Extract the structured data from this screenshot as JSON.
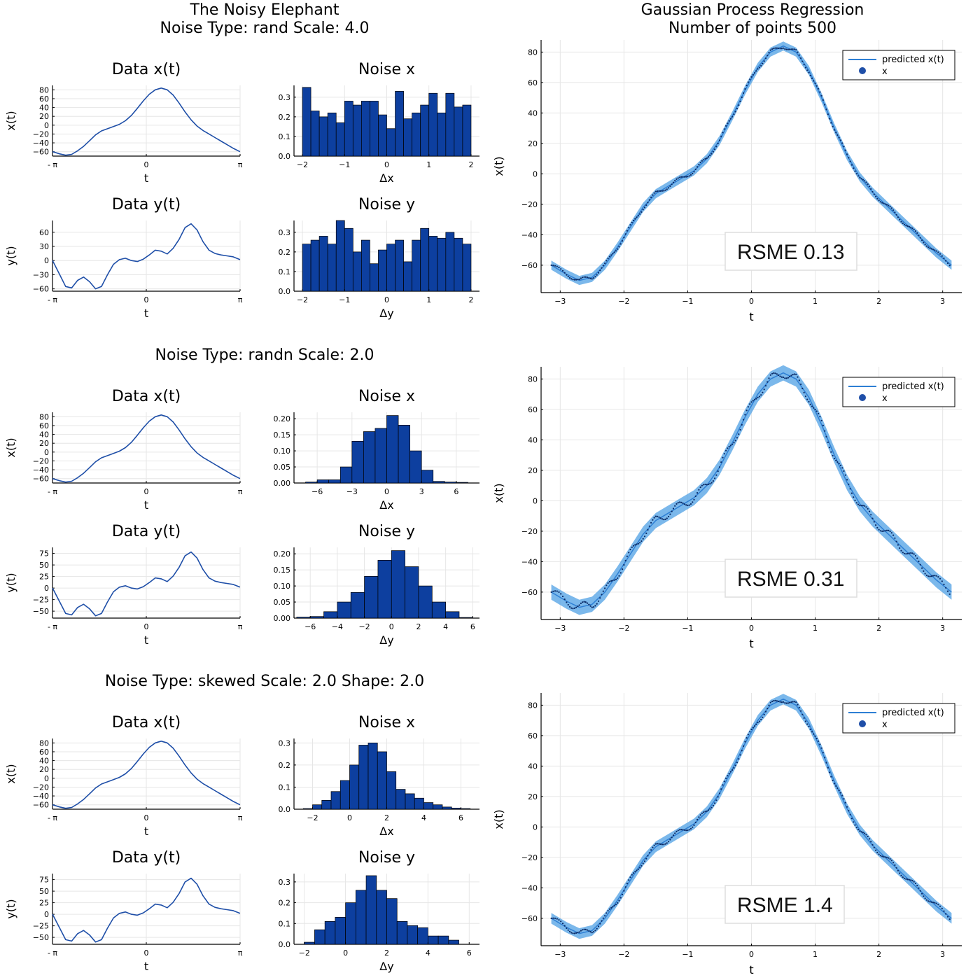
{
  "figure": {
    "section_titles": [
      "The Noisy Elephant\nNoise Type: rand Scale: 4.0",
      "Noise Type: randn Scale: 2.0",
      "Noise Type: skewed Scale: 2.0 Shape: 2.0"
    ],
    "gp_title": "Gaussian Process Regression\nNumber of points 500"
  },
  "colors": {
    "series": "#1f4fa8",
    "band": "#5aa6e6",
    "line": "#2e7fd4",
    "hist": "#0d3f9f"
  },
  "chart_data": [
    {
      "type": "line",
      "title": "Data x(t)",
      "xlabel": "t",
      "ylabel": "x(t)",
      "xlim": [
        -3.1416,
        3.1416
      ],
      "ylim": [
        -70,
        90
      ],
      "xticks": [
        -3.1416,
        0,
        3.1416
      ],
      "xticklabels": [
        "- π",
        "0",
        "π"
      ],
      "yticks": [
        -60,
        -40,
        -20,
        0,
        20,
        40,
        60,
        80
      ],
      "x": [
        -3.14,
        -2.9,
        -2.7,
        -2.5,
        -2.3,
        -2.1,
        -1.9,
        -1.7,
        -1.5,
        -1.3,
        -1.1,
        -0.9,
        -0.7,
        -0.5,
        -0.3,
        -0.1,
        0.1,
        0.3,
        0.5,
        0.7,
        0.9,
        1.1,
        1.3,
        1.5,
        1.7,
        1.9,
        2.1,
        2.3,
        2.5,
        2.7,
        2.9,
        3.14
      ],
      "y": [
        -60,
        -65,
        -68,
        -66,
        -58,
        -48,
        -35,
        -22,
        -13,
        -8,
        -3,
        2,
        10,
        22,
        38,
        55,
        70,
        80,
        84,
        80,
        68,
        50,
        30,
        12,
        -2,
        -12,
        -20,
        -28,
        -36,
        -44,
        -52,
        -60
      ]
    },
    {
      "type": "bar",
      "title": "Noise x",
      "xlabel": "Δx",
      "xlim": [
        -2.2,
        2.2
      ],
      "ylim": [
        0,
        0.36
      ],
      "xticks": [
        -2,
        -1,
        0,
        1,
        2
      ],
      "yticks": [
        0,
        0.1,
        0.2,
        0.3
      ],
      "bin_start": -2,
      "bin_width": 0.2,
      "values": [
        0.35,
        0.23,
        0.2,
        0.22,
        0.17,
        0.28,
        0.26,
        0.28,
        0.28,
        0.21,
        0.14,
        0.33,
        0.19,
        0.22,
        0.26,
        0.32,
        0.22,
        0.32,
        0.25,
        0.26
      ]
    },
    {
      "type": "line",
      "title": "Data y(t)",
      "xlabel": "t",
      "ylabel": "y(t)",
      "xlim": [
        -3.1416,
        3.1416
      ],
      "ylim": [
        -65,
        85
      ],
      "xticks": [
        -3.1416,
        0,
        3.1416
      ],
      "xticklabels": [
        "- π",
        "0",
        "π"
      ],
      "yticks": [
        -60,
        -30,
        0,
        30,
        60
      ],
      "x": [
        -3.14,
        -2.9,
        -2.7,
        -2.5,
        -2.3,
        -2.1,
        -1.9,
        -1.7,
        -1.5,
        -1.3,
        -1.1,
        -0.9,
        -0.7,
        -0.5,
        -0.3,
        -0.1,
        0.1,
        0.3,
        0.5,
        0.7,
        0.9,
        1.1,
        1.3,
        1.5,
        1.7,
        1.9,
        2.1,
        2.3,
        2.5,
        2.7,
        2.9,
        3.14
      ],
      "y": [
        0,
        -30,
        -55,
        -58,
        -42,
        -35,
        -45,
        -60,
        -55,
        -30,
        -8,
        2,
        5,
        0,
        -2,
        3,
        12,
        22,
        20,
        14,
        26,
        45,
        70,
        78,
        65,
        40,
        22,
        15,
        12,
        10,
        8,
        2
      ]
    },
    {
      "type": "bar",
      "title": "Noise y",
      "xlabel": "Δy",
      "xlim": [
        -2.2,
        2.2
      ],
      "ylim": [
        0,
        0.36
      ],
      "xticks": [
        -2,
        -1,
        0,
        1,
        2
      ],
      "yticks": [
        0,
        0.1,
        0.2,
        0.3
      ],
      "bin_start": -2,
      "bin_width": 0.2,
      "values": [
        0.24,
        0.26,
        0.28,
        0.24,
        0.36,
        0.32,
        0.2,
        0.26,
        0.14,
        0.21,
        0.24,
        0.26,
        0.15,
        0.26,
        0.32,
        0.28,
        0.27,
        0.3,
        0.27,
        0.24
      ]
    },
    {
      "type": "scatter",
      "title": "",
      "xlabel": "t",
      "ylabel": "x(t)",
      "xlim": [
        -3.3,
        3.3
      ],
      "ylim": [
        -78,
        88
      ],
      "xticks": [
        -3,
        -2,
        -1,
        0,
        1,
        2,
        3
      ],
      "yticks": [
        -60,
        -40,
        -20,
        0,
        20,
        40,
        60,
        80
      ],
      "legend": [
        "predicted x(t)",
        "x"
      ],
      "legend_position": "top-right",
      "annotation": "RSME 0.13",
      "band": 3,
      "noise": 1.5,
      "x": [
        -3.14,
        -2.9,
        -2.7,
        -2.5,
        -2.3,
        -2.1,
        -1.9,
        -1.7,
        -1.5,
        -1.3,
        -1.1,
        -0.9,
        -0.7,
        -0.5,
        -0.3,
        -0.1,
        0.1,
        0.3,
        0.5,
        0.7,
        0.9,
        1.1,
        1.3,
        1.5,
        1.7,
        1.9,
        2.1,
        2.3,
        2.5,
        2.7,
        2.9,
        3.14
      ],
      "y": [
        -60,
        -66,
        -70,
        -68,
        -60,
        -48,
        -35,
        -22,
        -13,
        -8,
        -3,
        2,
        10,
        22,
        38,
        55,
        70,
        80,
        84,
        80,
        68,
        50,
        30,
        12,
        -2,
        -12,
        -20,
        -28,
        -36,
        -44,
        -52,
        -60
      ]
    },
    {
      "type": "line",
      "title": "Data x(t)",
      "xlabel": "t",
      "ylabel": "x(t)",
      "xlim": [
        -3.1416,
        3.1416
      ],
      "ylim": [
        -70,
        90
      ],
      "xticks": [
        -3.1416,
        0,
        3.1416
      ],
      "xticklabels": [
        "- π",
        "0",
        "π"
      ],
      "yticks": [
        -60,
        -40,
        -20,
        0,
        20,
        40,
        60,
        80
      ],
      "x": [
        -3.14,
        -2.9,
        -2.7,
        -2.5,
        -2.3,
        -2.1,
        -1.9,
        -1.7,
        -1.5,
        -1.3,
        -1.1,
        -0.9,
        -0.7,
        -0.5,
        -0.3,
        -0.1,
        0.1,
        0.3,
        0.5,
        0.7,
        0.9,
        1.1,
        1.3,
        1.5,
        1.7,
        1.9,
        2.1,
        2.3,
        2.5,
        2.7,
        2.9,
        3.14
      ],
      "y": [
        -60,
        -65,
        -68,
        -66,
        -58,
        -48,
        -35,
        -22,
        -13,
        -8,
        -3,
        2,
        10,
        22,
        38,
        55,
        70,
        80,
        84,
        80,
        68,
        50,
        30,
        12,
        -2,
        -12,
        -20,
        -28,
        -36,
        -44,
        -52,
        -60
      ]
    },
    {
      "type": "bar",
      "title": "Noise x",
      "xlabel": "Δx",
      "xlim": [
        -8,
        8
      ],
      "ylim": [
        0,
        0.22
      ],
      "xticks": [
        -6,
        -3,
        0,
        3,
        6
      ],
      "yticks": [
        0,
        0.05,
        0.1,
        0.15,
        0.2
      ],
      "bin_start": -7,
      "bin_width": 1,
      "values": [
        0.003,
        0.01,
        0.01,
        0.05,
        0.13,
        0.16,
        0.17,
        0.21,
        0.18,
        0.1,
        0.04,
        0.005,
        0.003,
        0.002
      ]
    },
    {
      "type": "line",
      "title": "Data y(t)",
      "xlabel": "t",
      "ylabel": "y(t)",
      "xlim": [
        -3.1416,
        3.1416
      ],
      "ylim": [
        -65,
        88
      ],
      "xticks": [
        -3.1416,
        0,
        3.1416
      ],
      "xticklabels": [
        "- π",
        "0",
        "π"
      ],
      "yticks": [
        -50,
        -25,
        0,
        25,
        50,
        75
      ],
      "x": [
        -3.14,
        -2.9,
        -2.7,
        -2.5,
        -2.3,
        -2.1,
        -1.9,
        -1.7,
        -1.5,
        -1.3,
        -1.1,
        -0.9,
        -0.7,
        -0.5,
        -0.3,
        -0.1,
        0.1,
        0.3,
        0.5,
        0.7,
        0.9,
        1.1,
        1.3,
        1.5,
        1.7,
        1.9,
        2.1,
        2.3,
        2.5,
        2.7,
        2.9,
        3.14
      ],
      "y": [
        0,
        -30,
        -55,
        -58,
        -42,
        -35,
        -45,
        -60,
        -55,
        -30,
        -8,
        2,
        5,
        0,
        -2,
        3,
        12,
        22,
        20,
        14,
        26,
        45,
        70,
        78,
        65,
        40,
        22,
        15,
        12,
        10,
        8,
        2
      ]
    },
    {
      "type": "bar",
      "title": "Noise y",
      "xlabel": "Δy",
      "xlim": [
        -7.2,
        6.5
      ],
      "ylim": [
        0,
        0.22
      ],
      "xticks": [
        -6,
        -4,
        -2,
        0,
        2,
        4,
        6
      ],
      "yticks": [
        0,
        0.05,
        0.1,
        0.15,
        0.2
      ],
      "bin_start": -7,
      "bin_width": 1,
      "values": [
        0.003,
        0.005,
        0.02,
        0.05,
        0.08,
        0.13,
        0.18,
        0.21,
        0.16,
        0.1,
        0.05,
        0.02,
        0.002
      ]
    },
    {
      "type": "scatter",
      "title": "",
      "xlabel": "t",
      "ylabel": "x(t)",
      "xlim": [
        -3.3,
        3.3
      ],
      "ylim": [
        -78,
        88
      ],
      "xticks": [
        -3,
        -2,
        -1,
        0,
        1,
        2,
        3
      ],
      "yticks": [
        -60,
        -40,
        -20,
        0,
        20,
        40,
        60,
        80
      ],
      "legend": [
        "predicted x(t)",
        "x"
      ],
      "legend_position": "top-right",
      "annotation": "RSME 0.31",
      "band": 5,
      "noise": 3,
      "x": [
        -3.14,
        -2.9,
        -2.7,
        -2.5,
        -2.3,
        -2.1,
        -1.9,
        -1.7,
        -1.5,
        -1.3,
        -1.1,
        -0.9,
        -0.7,
        -0.5,
        -0.3,
        -0.1,
        0.1,
        0.3,
        0.5,
        0.7,
        0.9,
        1.1,
        1.3,
        1.5,
        1.7,
        1.9,
        2.1,
        2.3,
        2.5,
        2.7,
        2.9,
        3.14
      ],
      "y": [
        -60,
        -66,
        -70,
        -68,
        -60,
        -48,
        -35,
        -22,
        -13,
        -8,
        -3,
        2,
        10,
        22,
        38,
        55,
        70,
        80,
        84,
        80,
        68,
        50,
        30,
        12,
        -2,
        -12,
        -20,
        -28,
        -36,
        -44,
        -52,
        -60
      ]
    },
    {
      "type": "line",
      "title": "Data x(t)",
      "xlabel": "t",
      "ylabel": "x(t)",
      "xlim": [
        -3.1416,
        3.1416
      ],
      "ylim": [
        -70,
        90
      ],
      "xticks": [
        -3.1416,
        0,
        3.1416
      ],
      "xticklabels": [
        "- π",
        "0",
        "π"
      ],
      "yticks": [
        -60,
        -40,
        -20,
        0,
        20,
        40,
        60,
        80
      ],
      "x": [
        -3.14,
        -2.9,
        -2.7,
        -2.5,
        -2.3,
        -2.1,
        -1.9,
        -1.7,
        -1.5,
        -1.3,
        -1.1,
        -0.9,
        -0.7,
        -0.5,
        -0.3,
        -0.1,
        0.1,
        0.3,
        0.5,
        0.7,
        0.9,
        1.1,
        1.3,
        1.5,
        1.7,
        1.9,
        2.1,
        2.3,
        2.5,
        2.7,
        2.9,
        3.14
      ],
      "y": [
        -60,
        -65,
        -68,
        -66,
        -58,
        -48,
        -35,
        -22,
        -13,
        -8,
        -3,
        2,
        10,
        22,
        38,
        55,
        70,
        80,
        84,
        80,
        68,
        50,
        30,
        12,
        -2,
        -12,
        -20,
        -28,
        -36,
        -44,
        -52,
        -60
      ]
    },
    {
      "type": "bar",
      "title": "Noise x",
      "xlabel": "Δx",
      "xlim": [
        -3,
        7
      ],
      "ylim": [
        0,
        0.32
      ],
      "xticks": [
        -2,
        0,
        2,
        4,
        6
      ],
      "yticks": [
        0,
        0.1,
        0.2,
        0.3
      ],
      "bin_start": -2.5,
      "bin_width": 0.5,
      "values": [
        0.003,
        0.02,
        0.04,
        0.08,
        0.13,
        0.2,
        0.29,
        0.3,
        0.26,
        0.17,
        0.09,
        0.07,
        0.05,
        0.03,
        0.02,
        0.01,
        0.005,
        0.003
      ]
    },
    {
      "type": "line",
      "title": "Data y(t)",
      "xlabel": "t",
      "ylabel": "y(t)",
      "xlim": [
        -3.1416,
        3.1416
      ],
      "ylim": [
        -65,
        88
      ],
      "xticks": [
        -3.1416,
        0,
        3.1416
      ],
      "xticklabels": [
        "- π",
        "0",
        "π"
      ],
      "yticks": [
        -50,
        -25,
        0,
        25,
        50,
        75
      ],
      "x": [
        -3.14,
        -2.9,
        -2.7,
        -2.5,
        -2.3,
        -2.1,
        -1.9,
        -1.7,
        -1.5,
        -1.3,
        -1.1,
        -0.9,
        -0.7,
        -0.5,
        -0.3,
        -0.1,
        0.1,
        0.3,
        0.5,
        0.7,
        0.9,
        1.1,
        1.3,
        1.5,
        1.7,
        1.9,
        2.1,
        2.3,
        2.5,
        2.7,
        2.9,
        3.14
      ],
      "y": [
        0,
        -30,
        -55,
        -58,
        -42,
        -35,
        -45,
        -60,
        -55,
        -30,
        -8,
        2,
        5,
        0,
        -2,
        3,
        12,
        22,
        20,
        14,
        26,
        45,
        70,
        78,
        65,
        40,
        22,
        15,
        12,
        10,
        8,
        2
      ]
    },
    {
      "type": "bar",
      "title": "Noise y",
      "xlabel": "Δy",
      "xlim": [
        -2.5,
        6.5
      ],
      "ylim": [
        0,
        0.34
      ],
      "xticks": [
        -2,
        0,
        2,
        4,
        6
      ],
      "yticks": [
        0,
        0.1,
        0.2,
        0.3
      ],
      "bin_start": -2,
      "bin_width": 0.5,
      "values": [
        0.01,
        0.07,
        0.11,
        0.13,
        0.2,
        0.26,
        0.33,
        0.26,
        0.22,
        0.11,
        0.09,
        0.08,
        0.04,
        0.04,
        0.02
      ]
    },
    {
      "type": "scatter",
      "title": "",
      "xlabel": "t",
      "ylabel": "x(t)",
      "xlim": [
        -3.3,
        3.3
      ],
      "ylim": [
        -78,
        88
      ],
      "xticks": [
        -3,
        -2,
        -1,
        0,
        1,
        2,
        3
      ],
      "yticks": [
        -60,
        -40,
        -20,
        0,
        20,
        40,
        60,
        80
      ],
      "legend": [
        "predicted x(t)",
        "x"
      ],
      "legend_position": "top-right",
      "annotation": "RSME 1.4",
      "band": 3.5,
      "noise": 2,
      "x": [
        -3.14,
        -2.9,
        -2.7,
        -2.5,
        -2.3,
        -2.1,
        -1.9,
        -1.7,
        -1.5,
        -1.3,
        -1.1,
        -0.9,
        -0.7,
        -0.5,
        -0.3,
        -0.1,
        0.1,
        0.3,
        0.5,
        0.7,
        0.9,
        1.1,
        1.3,
        1.5,
        1.7,
        1.9,
        2.1,
        2.3,
        2.5,
        2.7,
        2.9,
        3.14
      ],
      "y": [
        -60,
        -66,
        -70,
        -68,
        -60,
        -48,
        -35,
        -22,
        -13,
        -8,
        -3,
        2,
        10,
        22,
        38,
        55,
        70,
        80,
        84,
        80,
        68,
        50,
        30,
        12,
        -2,
        -12,
        -20,
        -28,
        -36,
        -44,
        -52,
        -60
      ]
    }
  ]
}
